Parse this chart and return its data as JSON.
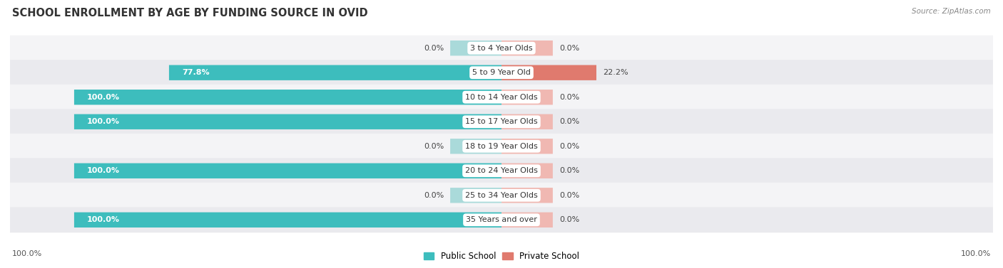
{
  "title": "SCHOOL ENROLLMENT BY AGE BY FUNDING SOURCE IN OVID",
  "source": "Source: ZipAtlas.com",
  "categories": [
    "3 to 4 Year Olds",
    "5 to 9 Year Old",
    "10 to 14 Year Olds",
    "15 to 17 Year Olds",
    "18 to 19 Year Olds",
    "20 to 24 Year Olds",
    "25 to 34 Year Olds",
    "35 Years and over"
  ],
  "public_values": [
    0.0,
    77.8,
    100.0,
    100.0,
    0.0,
    100.0,
    0.0,
    100.0
  ],
  "private_values": [
    0.0,
    22.2,
    0.0,
    0.0,
    0.0,
    0.0,
    0.0,
    0.0
  ],
  "public_color": "#3dbdbd",
  "private_color": "#e07a6e",
  "public_color_light": "#aadada",
  "private_color_light": "#f0b8b2",
  "row_bg_odd": "#f4f4f6",
  "row_bg_even": "#eaeaee",
  "title_fontsize": 10.5,
  "bar_height": 0.62,
  "stub_size": 12.0,
  "x_left_label": "100.0%",
  "x_right_label": "100.0%"
}
